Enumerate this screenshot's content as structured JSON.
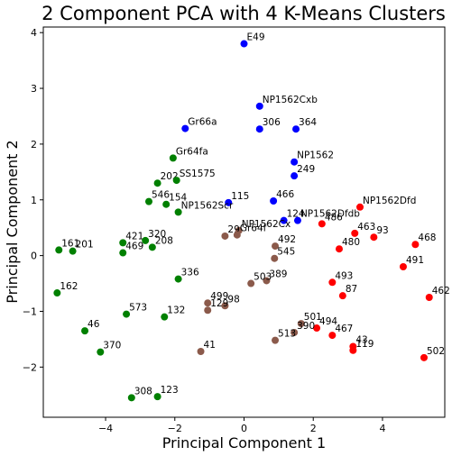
{
  "chart_data": {
    "type": "scatter",
    "title": "2 Component PCA with 4 K-Means Clusters",
    "xlabel": "Principal Component 1",
    "ylabel": "Principal Component 2",
    "xlim": [
      -5.8,
      5.8
    ],
    "ylim": [
      -2.9,
      4.1
    ],
    "xticks": [
      -4,
      -2,
      0,
      2,
      4
    ],
    "yticks": [
      -2,
      -1,
      0,
      1,
      2,
      3,
      4
    ],
    "grid": false,
    "colors": {
      "blue": "#0000ff",
      "green": "#008000",
      "red": "#ff0000",
      "brown": "#8b5a4b"
    },
    "points": [
      {
        "label": "E49",
        "x": 0.0,
        "y": 3.8,
        "color": "blue"
      },
      {
        "label": "NP1562Cxb",
        "x": 0.45,
        "y": 2.68,
        "color": "blue"
      },
      {
        "label": "Gr66a",
        "x": -1.7,
        "y": 2.28,
        "color": "blue"
      },
      {
        "label": "306",
        "x": 0.45,
        "y": 2.27,
        "color": "blue"
      },
      {
        "label": "364",
        "x": 1.5,
        "y": 2.27,
        "color": "blue"
      },
      {
        "label": "NP1562",
        "x": 1.45,
        "y": 1.68,
        "color": "blue"
      },
      {
        "label": "249",
        "x": 1.45,
        "y": 1.43,
        "color": "blue"
      },
      {
        "label": "115",
        "x": -0.45,
        "y": 0.95,
        "color": "blue"
      },
      {
        "label": "466",
        "x": 0.85,
        "y": 0.98,
        "color": "blue"
      },
      {
        "label": "124",
        "x": 1.15,
        "y": 0.63,
        "color": "blue"
      },
      {
        "label": "NP1562Dfdb",
        "x": 1.55,
        "y": 0.63,
        "color": "blue"
      },
      {
        "label": "Gr64fa",
        "x": -2.05,
        "y": 1.75,
        "color": "green"
      },
      {
        "label": "202",
        "x": -2.5,
        "y": 1.3,
        "color": "green"
      },
      {
        "label": "SS1575",
        "x": -1.95,
        "y": 1.35,
        "color": "green"
      },
      {
        "label": "546",
        "x": -2.75,
        "y": 0.97,
        "color": "green"
      },
      {
        "label": "154",
        "x": -2.25,
        "y": 0.92,
        "color": "green"
      },
      {
        "label": "NP1562Scr",
        "x": -1.9,
        "y": 0.78,
        "color": "green"
      },
      {
        "label": "161",
        "x": -5.35,
        "y": 0.1,
        "color": "green"
      },
      {
        "label": "201",
        "x": -4.95,
        "y": 0.08,
        "color": "green"
      },
      {
        "label": "421",
        "x": -3.5,
        "y": 0.23,
        "color": "green"
      },
      {
        "label": "320",
        "x": -2.85,
        "y": 0.27,
        "color": "green"
      },
      {
        "label": "208",
        "x": -2.65,
        "y": 0.15,
        "color": "green"
      },
      {
        "label": "469",
        "x": -3.5,
        "y": 0.05,
        "color": "green"
      },
      {
        "label": "336",
        "x": -1.9,
        "y": -0.42,
        "color": "green"
      },
      {
        "label": "162",
        "x": -5.4,
        "y": -0.67,
        "color": "green"
      },
      {
        "label": "573",
        "x": -3.4,
        "y": -1.05,
        "color": "green"
      },
      {
        "label": "132",
        "x": -2.3,
        "y": -1.1,
        "color": "green"
      },
      {
        "label": "46",
        "x": -4.6,
        "y": -1.35,
        "color": "green"
      },
      {
        "label": "370",
        "x": -4.15,
        "y": -1.73,
        "color": "green"
      },
      {
        "label": "308",
        "x": -3.25,
        "y": -2.55,
        "color": "green"
      },
      {
        "label": "123",
        "x": -2.5,
        "y": -2.53,
        "color": "green"
      },
      {
        "label": "NP1562Dfd",
        "x": 3.35,
        "y": 0.87,
        "color": "red"
      },
      {
        "label": "486",
        "x": 2.25,
        "y": 0.57,
        "color": "red"
      },
      {
        "label": "463",
        "x": 3.2,
        "y": 0.4,
        "color": "red"
      },
      {
        "label": "93",
        "x": 3.75,
        "y": 0.33,
        "color": "red"
      },
      {
        "label": "480",
        "x": 2.75,
        "y": 0.12,
        "color": "red"
      },
      {
        "label": "468",
        "x": 4.95,
        "y": 0.2,
        "color": "red"
      },
      {
        "label": "491",
        "x": 4.6,
        "y": -0.2,
        "color": "red"
      },
      {
        "label": "493",
        "x": 2.55,
        "y": -0.48,
        "color": "red"
      },
      {
        "label": "87",
        "x": 2.85,
        "y": -0.72,
        "color": "red"
      },
      {
        "label": "462",
        "x": 5.35,
        "y": -0.75,
        "color": "red"
      },
      {
        "label": "494",
        "x": 2.1,
        "y": -1.3,
        "color": "red"
      },
      {
        "label": "467",
        "x": 2.55,
        "y": -1.43,
        "color": "red"
      },
      {
        "label": "43",
        "x": 3.15,
        "y": -1.63,
        "color": "red"
      },
      {
        "label": "119",
        "x": 3.15,
        "y": -1.7,
        "color": "red"
      },
      {
        "label": "502",
        "x": 5.2,
        "y": -1.83,
        "color": "red"
      },
      {
        "label": "NP1562Cx",
        "x": -0.15,
        "y": 0.45,
        "color": "brown"
      },
      {
        "label": "29",
        "x": -0.55,
        "y": 0.35,
        "color": "brown"
      },
      {
        "label": "Gr64f",
        "x": -0.2,
        "y": 0.37,
        "color": "brown"
      },
      {
        "label": "492",
        "x": 0.9,
        "y": 0.17,
        "color": "brown"
      },
      {
        "label": "545",
        "x": 0.88,
        "y": -0.05,
        "color": "brown"
      },
      {
        "label": "389",
        "x": 0.65,
        "y": -0.45,
        "color": "brown"
      },
      {
        "label": "503",
        "x": 0.2,
        "y": -0.5,
        "color": "brown"
      },
      {
        "label": "499",
        "x": -1.05,
        "y": -0.85,
        "color": "brown"
      },
      {
        "label": "98",
        "x": -0.55,
        "y": -0.9,
        "color": "brown"
      },
      {
        "label": "129",
        "x": -1.05,
        "y": -0.98,
        "color": "brown"
      },
      {
        "label": "501",
        "x": 1.65,
        "y": -1.22,
        "color": "brown"
      },
      {
        "label": "390",
        "x": 1.45,
        "y": -1.38,
        "color": "brown"
      },
      {
        "label": "513",
        "x": 0.9,
        "y": -1.52,
        "color": "brown"
      },
      {
        "label": "41",
        "x": -1.25,
        "y": -1.72,
        "color": "brown"
      }
    ]
  }
}
